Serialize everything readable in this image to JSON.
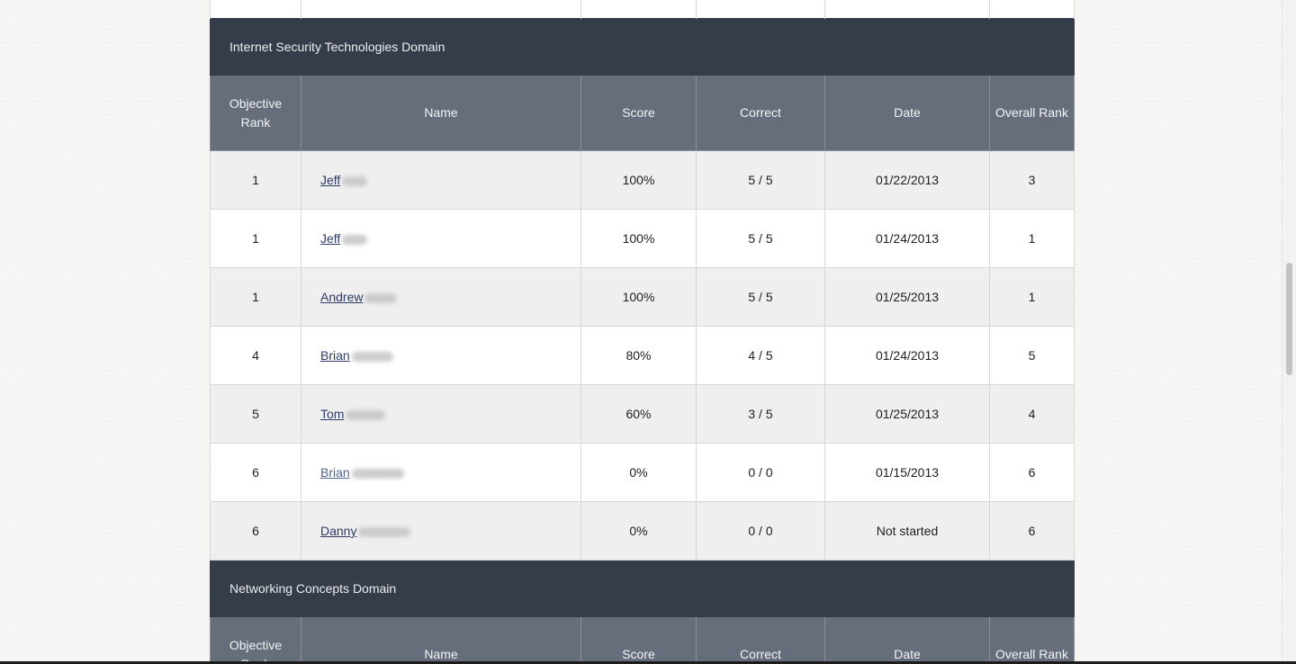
{
  "columns": [
    "Objective Rank",
    "Name",
    "Score",
    "Correct",
    "Date",
    "Overall Rank"
  ],
  "sections": [
    {
      "title": "Internet Security Technologies Domain",
      "rows": [
        {
          "objective_rank": "1",
          "name": "Jeff",
          "score": "100%",
          "correct": "5 / 5",
          "date": "01/22/2013",
          "overall_rank": "3"
        },
        {
          "objective_rank": "1",
          "name": "Jeff",
          "score": "100%",
          "correct": "5 / 5",
          "date": "01/24/2013",
          "overall_rank": "1"
        },
        {
          "objective_rank": "1",
          "name": "Andrew",
          "score": "100%",
          "correct": "5 / 5",
          "date": "01/25/2013",
          "overall_rank": "1"
        },
        {
          "objective_rank": "4",
          "name": "Brian",
          "score": "80%",
          "correct": "4 / 5",
          "date": "01/24/2013",
          "overall_rank": "5"
        },
        {
          "objective_rank": "5",
          "name": "Tom",
          "score": "60%",
          "correct": "3 / 5",
          "date": "01/25/2013",
          "overall_rank": "4"
        },
        {
          "objective_rank": "6",
          "name": "Brian",
          "score": "0%",
          "correct": "0 / 0",
          "date": "01/15/2013",
          "overall_rank": "6"
        },
        {
          "objective_rank": "6",
          "name": "Danny",
          "score": "0%",
          "correct": "0 / 0",
          "date": "Not started",
          "overall_rank": "6"
        }
      ]
    },
    {
      "title": "Networking Concepts Domain",
      "rows": []
    }
  ]
}
